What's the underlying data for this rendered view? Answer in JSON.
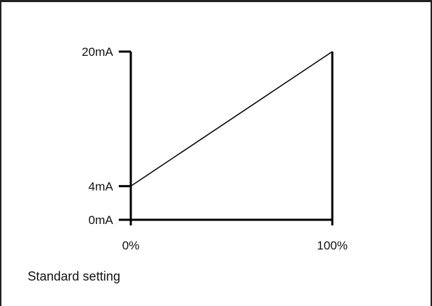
{
  "chart_data": {
    "type": "line",
    "x_tick_labels": [
      "0%",
      "100%"
    ],
    "y_tick_labels": [
      "0mA",
      "4mA",
      "20mA"
    ],
    "x": [
      0,
      100
    ],
    "y": [
      4,
      20
    ],
    "xlim": [
      0,
      100
    ],
    "ylim": [
      0,
      20
    ],
    "caption": "Standard setting",
    "grid": false
  }
}
